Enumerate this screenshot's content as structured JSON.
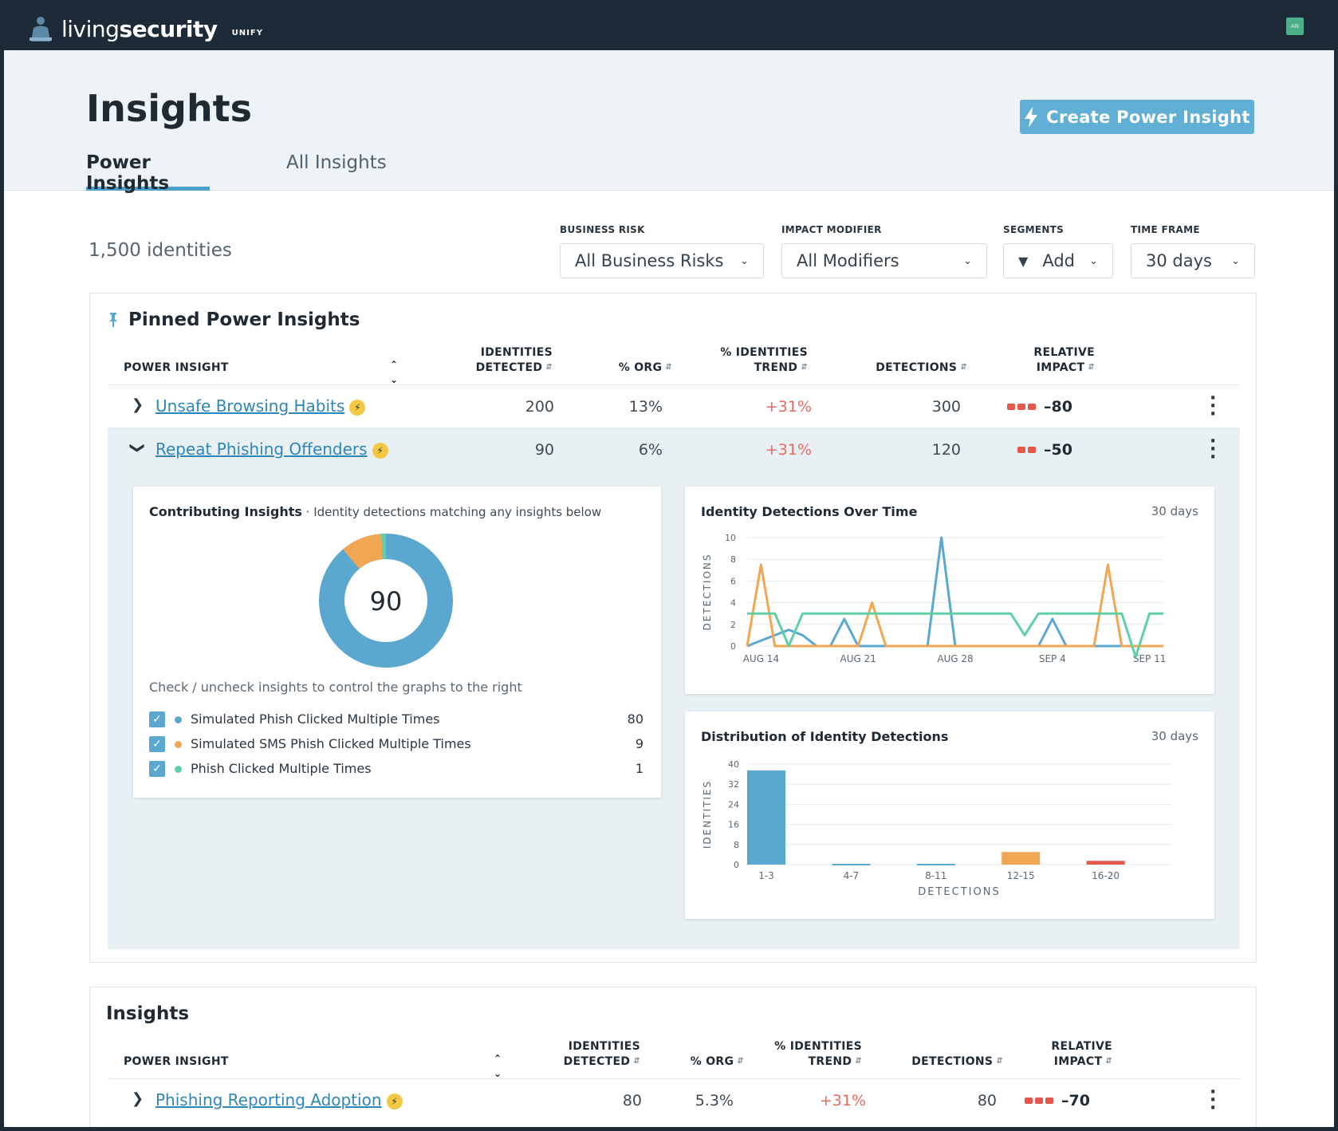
{
  "app": {
    "brand_light": "living",
    "brand_bold": "security",
    "product": "UNIFY",
    "avatar": "AN"
  },
  "page": {
    "title": "Insights",
    "cta": "Create Power Insight",
    "tabs": [
      {
        "label": "Power Insights"
      },
      {
        "label": "All Insights"
      }
    ]
  },
  "summary": {
    "identities": "1,500 identities"
  },
  "filters": {
    "business_risk": {
      "label": "BUSINESS RISK",
      "value": "All Business Risks"
    },
    "impact_modifier": {
      "label": "IMPACT MODIFIER",
      "value": "All Modifiers"
    },
    "segments": {
      "label": "SEGMENTS",
      "value": "Add"
    },
    "time_frame": {
      "label": "TIME FRAME",
      "value": "30 days"
    }
  },
  "pinned": {
    "title": "Pinned Power Insights",
    "columns": {
      "power_insight": "POWER INSIGHT",
      "identities_1": "IDENTITIES",
      "identities_2": "DETECTED",
      "org": "% ORG",
      "trend_1": "% IDENTITIES",
      "trend_2": "TREND",
      "detections": "DETECTIONS",
      "impact_1": "RELATIVE",
      "impact_2": "IMPACT"
    },
    "rows": [
      {
        "name": "Unsafe Browsing Habits",
        "identities": "200",
        "org": "13%",
        "trend": "+31%",
        "detections": "300",
        "impact": "–80",
        "impact_level": 3
      },
      {
        "name": "Repeat Phishing Offenders",
        "identities": "90",
        "org": "6%",
        "trend": "+31%",
        "detections": "120",
        "impact": "–50",
        "impact_level": 2
      }
    ]
  },
  "contributing": {
    "title": "Contributing Insights",
    "subtitle": " · Identity detections matching any insights below",
    "total": "90",
    "hint": "Check / uncheck insights to control the graphs to the right",
    "items": [
      {
        "label": "Simulated Phish Clicked Multiple Times",
        "value": "80",
        "color": "#5aa8d0"
      },
      {
        "label": "Simulated SMS Phish Clicked Multiple Times",
        "value": "9",
        "color": "#f0a652"
      },
      {
        "label": "Phish Clicked Multiple Times",
        "value": "1",
        "color": "#5fd0a4"
      }
    ]
  },
  "chart_data": [
    {
      "type": "line",
      "title": "Identity Detections Over Time",
      "subtitle": "30 days",
      "ylabel": "DETECTIONS",
      "ylim": [
        0,
        10
      ],
      "yticks": [
        0,
        2,
        4,
        6,
        8,
        10
      ],
      "xticks": [
        "AUG 14",
        "AUG 21",
        "AUG 28",
        "SEP 4",
        "SEP 11"
      ],
      "x": [
        "Aug 13",
        "Aug 14",
        "Aug 15",
        "Aug 16",
        "Aug 17",
        "Aug 18",
        "Aug 19",
        "Aug 20",
        "Aug 21",
        "Aug 22",
        "Aug 23",
        "Aug 24",
        "Aug 25",
        "Aug 26",
        "Aug 27",
        "Aug 28",
        "Aug 29",
        "Aug 30",
        "Aug 31",
        "Sep 1",
        "Sep 2",
        "Sep 3",
        "Sep 4",
        "Sep 5",
        "Sep 6",
        "Sep 7",
        "Sep 8",
        "Sep 9",
        "Sep 10",
        "Sep 11",
        "Sep 12"
      ],
      "series": [
        {
          "color": "#5aa8d0",
          "values": [
            0,
            0.5,
            1,
            1.5,
            1,
            0,
            0,
            2.5,
            0,
            0,
            0,
            0,
            0,
            0,
            10,
            0,
            0,
            0,
            0,
            0,
            0,
            0,
            2.5,
            0,
            0,
            0,
            0,
            0,
            0,
            0,
            0
          ]
        },
        {
          "color": "#f0a652",
          "values": [
            0,
            7.5,
            0,
            0,
            0,
            0,
            0,
            0,
            0,
            4,
            0,
            0,
            0,
            0,
            0,
            0,
            0,
            0,
            0,
            0,
            0,
            0,
            0,
            0,
            0,
            0,
            7.5,
            0,
            0,
            0,
            0
          ]
        },
        {
          "color": "#5fd0a4",
          "values": [
            3,
            3,
            3,
            0,
            3,
            3,
            3,
            3,
            3,
            3,
            3,
            3,
            3,
            3,
            3,
            3,
            3,
            3,
            3,
            3,
            1,
            3,
            3,
            3,
            3,
            3,
            3,
            3,
            -1,
            3,
            3
          ]
        }
      ]
    },
    {
      "type": "bar",
      "title": "Distribution of Identity Detections",
      "subtitle": "30 days",
      "ylabel": "IDENTITIES",
      "xlabel": "DETECTIONS",
      "ylim": [
        0,
        40
      ],
      "yticks": [
        0,
        8,
        16,
        24,
        32,
        40
      ],
      "categories": [
        "1-3",
        "4-7",
        "8-11",
        "12-15",
        "16-20"
      ],
      "values": [
        37.5,
        0.3,
        0.3,
        5,
        1.5
      ],
      "colors": [
        "#5aa8d0",
        "#5aa8d0",
        "#5aa8d0",
        "#f0a652",
        "#e5574a"
      ]
    }
  ],
  "insights": {
    "title": "Insights",
    "rows": [
      {
        "name": "Phishing Reporting Adoption",
        "identities": "80",
        "org": "5.3%",
        "trend": "+31%",
        "detections": "80",
        "impact": "–70",
        "impact_level": 3
      }
    ]
  }
}
